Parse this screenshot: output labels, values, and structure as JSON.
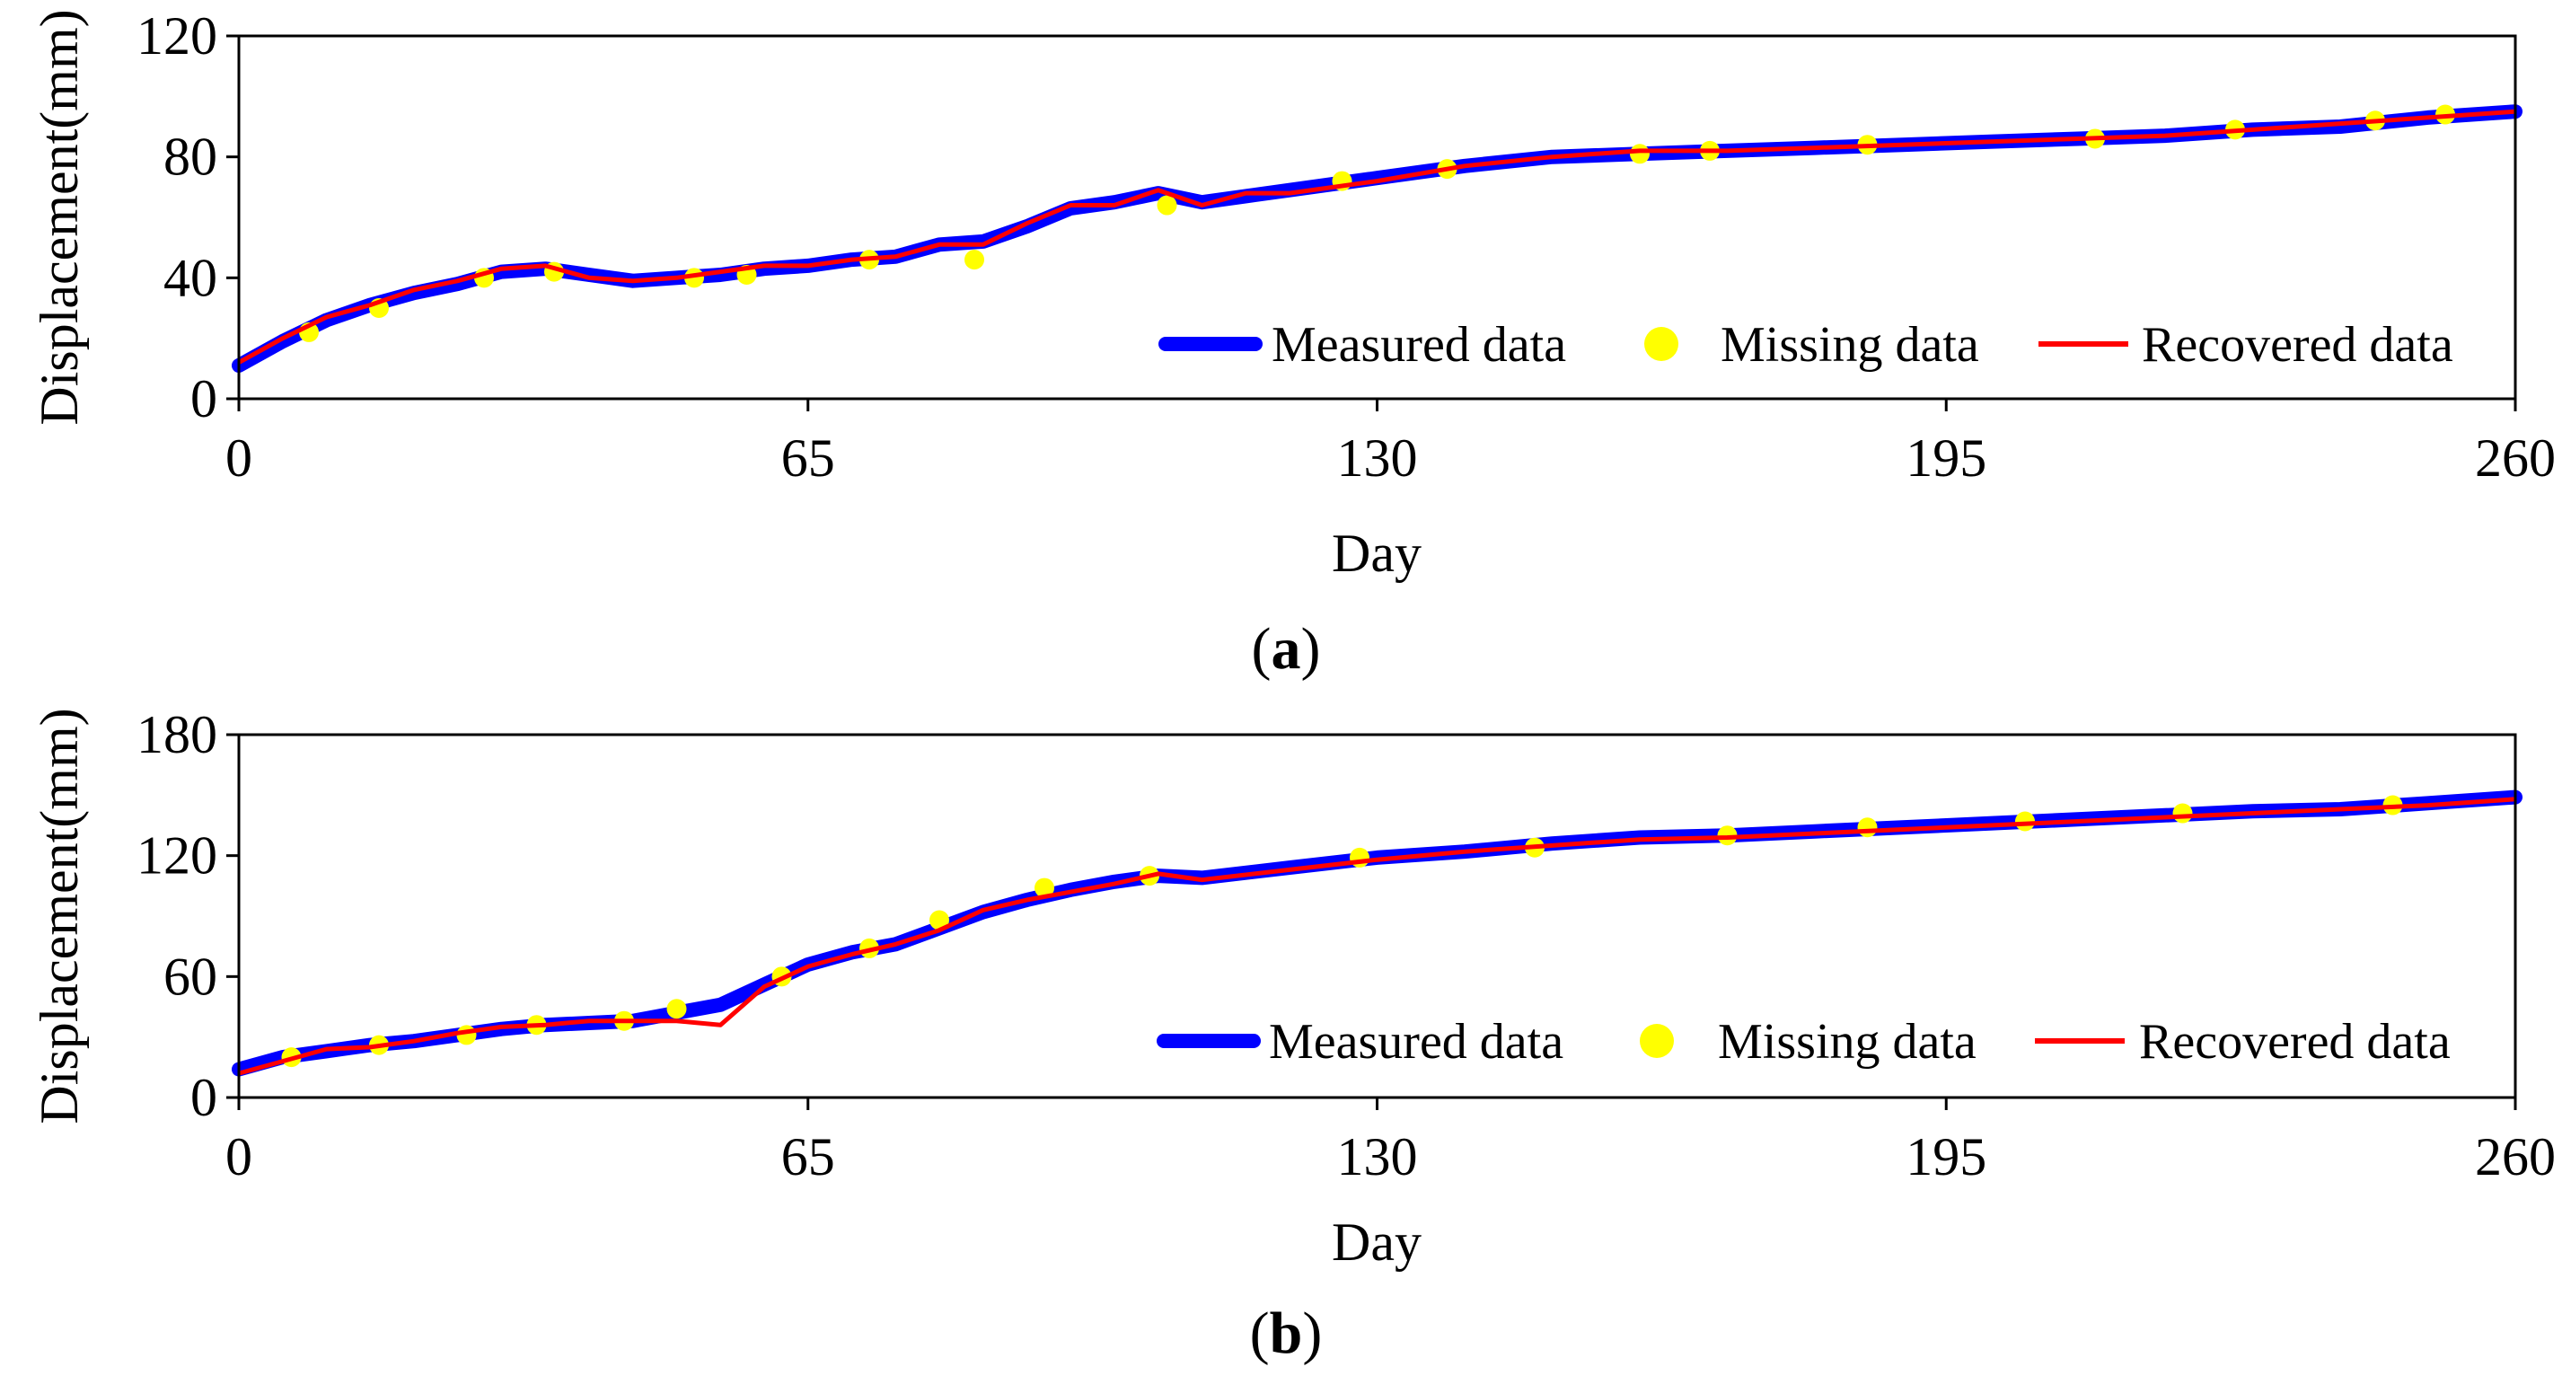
{
  "chart_data": [
    {
      "panel": "a",
      "caption": {
        "open": "(",
        "letter": "a",
        "close": ")"
      },
      "type": "line",
      "xlabel": "Day",
      "ylabel": "Displacement(mm)",
      "xlim": [
        0,
        260
      ],
      "ylim": [
        0,
        120
      ],
      "xticks": [
        0,
        65,
        130,
        195,
        260
      ],
      "yticks": [
        0,
        40,
        80,
        120
      ],
      "legend": {
        "position": "bottom-right",
        "items": [
          "Measured data",
          "Missing data",
          "Recovered data"
        ]
      },
      "colors": {
        "measured": "#0000ff",
        "missing": "#ffff00",
        "recovered": "#ff0000"
      },
      "x": [
        0,
        5,
        10,
        15,
        20,
        25,
        30,
        35,
        40,
        45,
        50,
        55,
        60,
        65,
        70,
        75,
        80,
        85,
        90,
        95,
        100,
        105,
        110,
        115,
        120,
        130,
        140,
        150,
        160,
        170,
        180,
        190,
        200,
        210,
        220,
        230,
        240,
        250,
        260
      ],
      "series": [
        {
          "name": "Measured data",
          "values": [
            11,
            19,
            26,
            31,
            35,
            38,
            42,
            43,
            41,
            39,
            40,
            41,
            43,
            44,
            46,
            47,
            51,
            52,
            57,
            63,
            65,
            68,
            65,
            67,
            69,
            73,
            77,
            80,
            81,
            82,
            83,
            84,
            85,
            86,
            87,
            89,
            90,
            93,
            95
          ]
        },
        {
          "name": "Recovered data",
          "values": [
            12,
            20,
            27,
            31,
            36,
            39,
            43,
            44,
            40,
            39,
            40,
            42,
            44,
            44,
            46,
            47,
            51,
            51,
            58,
            64,
            64,
            69,
            64,
            68,
            68,
            72,
            77,
            80,
            82,
            82,
            83,
            84,
            85,
            86,
            87,
            89,
            91,
            93,
            95
          ]
        },
        {
          "name": "Missing data",
          "x": [
            8,
            16,
            28,
            36,
            52,
            58,
            72,
            84,
            106,
            126,
            138,
            160,
            168,
            186,
            212,
            228,
            244,
            252
          ],
          "values": [
            22,
            30,
            40,
            42,
            40,
            41,
            46,
            46,
            64,
            72,
            76,
            81,
            82,
            84,
            86,
            89,
            92,
            94
          ]
        }
      ]
    },
    {
      "panel": "b",
      "caption": {
        "open": "(",
        "letter": "b",
        "close": ")"
      },
      "type": "line",
      "xlabel": "Day",
      "ylabel": "Displacement(mm)",
      "xlim": [
        0,
        260
      ],
      "ylim": [
        0,
        180
      ],
      "xticks": [
        0,
        65,
        130,
        195,
        260
      ],
      "yticks": [
        0,
        60,
        120,
        180
      ],
      "legend": {
        "position": "bottom-right",
        "items": [
          "Measured data",
          "Missing data",
          "Recovered data"
        ]
      },
      "colors": {
        "measured": "#0000ff",
        "missing": "#ffff00",
        "recovered": "#ff0000"
      },
      "x": [
        0,
        5,
        10,
        15,
        20,
        25,
        30,
        35,
        40,
        45,
        50,
        55,
        60,
        65,
        70,
        75,
        80,
        85,
        90,
        95,
        100,
        105,
        110,
        120,
        130,
        140,
        150,
        160,
        170,
        180,
        190,
        200,
        210,
        220,
        230,
        240,
        250,
        260
      ],
      "series": [
        {
          "name": "Measured data",
          "values": [
            14,
            20,
            23,
            26,
            28,
            31,
            34,
            36,
            37,
            38,
            42,
            46,
            56,
            66,
            72,
            76,
            84,
            92,
            98,
            103,
            107,
            110,
            109,
            114,
            119,
            122,
            126,
            129,
            130,
            132,
            134,
            136,
            138,
            140,
            142,
            143,
            146,
            149
          ]
        },
        {
          "name": "Recovered data",
          "values": [
            12,
            18,
            24,
            25,
            28,
            32,
            35,
            36,
            38,
            38,
            38,
            36,
            55,
            65,
            71,
            76,
            83,
            93,
            98,
            102,
            106,
            111,
            108,
            113,
            118,
            122,
            125,
            128,
            129,
            131,
            133,
            135,
            137,
            139,
            141,
            143,
            145,
            148
          ]
        },
        {
          "name": "Missing data",
          "x": [
            6,
            16,
            26,
            34,
            44,
            50,
            62,
            72,
            80,
            92,
            104,
            128,
            148,
            170,
            186,
            204,
            222,
            246
          ],
          "values": [
            20,
            26,
            31,
            36,
            38,
            44,
            60,
            74,
            88,
            104,
            110,
            119,
            124,
            130,
            134,
            137,
            141,
            145
          ]
        }
      ]
    }
  ]
}
